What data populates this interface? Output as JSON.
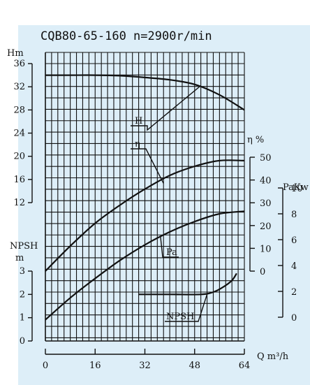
{
  "colors": {
    "background": "#ddeef8",
    "grid": "#111111",
    "curve": "#111111"
  },
  "chart_data": {
    "type": "line",
    "title": "CQB80-65-160 n=2900r/min",
    "xlabel": "Q m³/h",
    "x_ticks": [
      "0",
      "16",
      "32",
      "48",
      "64"
    ],
    "xlim": [
      0,
      64
    ],
    "axes": {
      "head": {
        "label": "Hm",
        "ticks": [
          "36",
          "32",
          "28",
          "24",
          "20",
          "16",
          "12"
        ],
        "range": [
          12,
          36
        ]
      },
      "efficiency": {
        "label": "η %",
        "ticks": [
          "50",
          "40",
          "30",
          "20",
          "10",
          "0"
        ],
        "range": [
          0,
          50
        ]
      },
      "power": {
        "label": "PaKw",
        "ticks": [
          "10",
          "8",
          "6",
          "4",
          "2",
          "0"
        ],
        "range": [
          0,
          10
        ]
      },
      "npsh": {
        "label_line1": "NPSH",
        "label_line2": "m",
        "ticks": [
          "3",
          "2",
          "1",
          "0"
        ],
        "range": [
          0,
          3
        ]
      }
    },
    "series": [
      {
        "name": "H",
        "axis": "head",
        "x": [
          0,
          8,
          16,
          24,
          32,
          40,
          48,
          56,
          64
        ],
        "y": [
          34,
          34,
          34,
          33.9,
          33.6,
          33.2,
          32.4,
          30.6,
          28
        ]
      },
      {
        "name": "η",
        "axis": "efficiency",
        "x": [
          0,
          8,
          16,
          24,
          32,
          40,
          48,
          56,
          64
        ],
        "y": [
          0,
          11,
          21,
          29,
          36,
          42,
          46,
          48.5,
          48.5
        ]
      },
      {
        "name": "Pa",
        "axis": "power",
        "x": [
          0,
          8,
          16,
          24,
          32,
          40,
          48,
          56,
          64
        ],
        "y": [
          -0.2,
          1.5,
          3.0,
          4.4,
          5.6,
          6.6,
          7.4,
          8.0,
          8.2
        ]
      },
      {
        "name": "NPSH",
        "axis": "npsh",
        "x": [
          30,
          40,
          50,
          54,
          57,
          60,
          61.5
        ],
        "y": [
          2.0,
          2.0,
          2.0,
          2.1,
          2.3,
          2.6,
          2.9
        ]
      }
    ],
    "grid": true
  }
}
